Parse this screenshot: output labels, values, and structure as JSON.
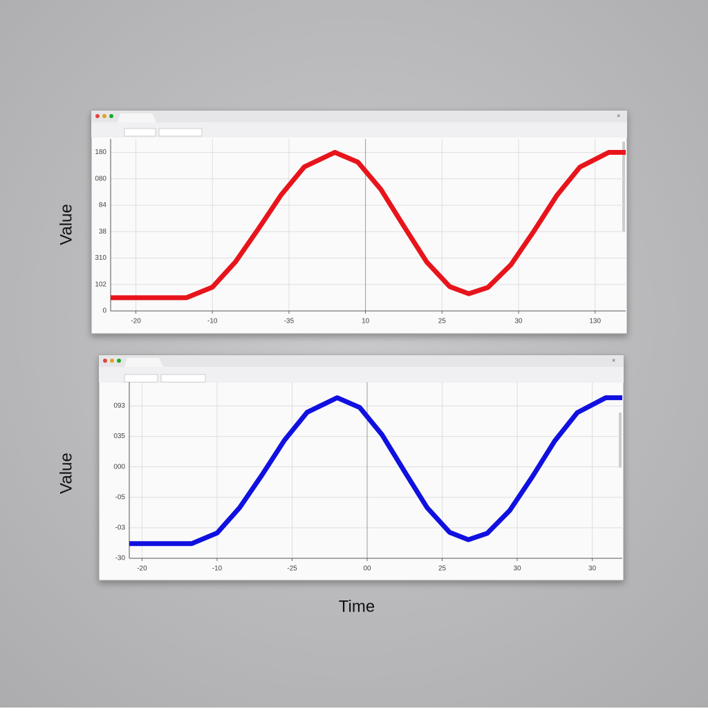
{
  "chart_data": [
    {
      "type": "line",
      "ylabel": "Value",
      "x": [
        -0.33,
        0.66,
        1.0,
        1.3,
        1.6,
        1.9,
        2.2,
        2.6,
        2.9,
        3.2,
        3.5,
        3.8,
        4.1,
        4.35,
        4.6,
        4.9,
        5.2,
        5.5,
        5.8,
        6.18,
        6.4
      ],
      "series": [
        {
          "color": "#e8141b",
          "values": [
            0.5,
            0.5,
            0.9,
            1.85,
            3.1,
            4.4,
            5.45,
            6.0,
            5.63,
            4.6,
            3.21,
            1.85,
            0.92,
            0.65,
            0.89,
            1.75,
            3.02,
            4.37,
            5.44,
            6.0,
            6.0
          ]
        }
      ],
      "xlim": [
        -0.33,
        6.4
      ],
      "ylim": [
        0,
        6.3
      ],
      "xticks": [
        {
          "value": 0,
          "label": "-20"
        },
        {
          "value": 1,
          "label": "-10"
        },
        {
          "value": 2,
          "label": "-35"
        },
        {
          "value": 3,
          "label": "10"
        },
        {
          "value": 4,
          "label": "25"
        },
        {
          "value": 5,
          "label": "30"
        },
        {
          "value": 6,
          "label": "130"
        }
      ],
      "yticks": [
        {
          "value": 0,
          "label": "0"
        },
        {
          "value": 1,
          "label": "102"
        },
        {
          "value": 2,
          "label": "310"
        },
        {
          "value": 3,
          "label": "38"
        },
        {
          "value": 4,
          "label": "84"
        },
        {
          "value": 5,
          "label": "080"
        },
        {
          "value": 6,
          "label": "180"
        }
      ],
      "grid": true
    },
    {
      "type": "line",
      "ylabel": "Value",
      "xlabel": "Time",
      "x": [
        -0.17,
        0.66,
        1.0,
        1.3,
        1.6,
        1.9,
        2.2,
        2.6,
        2.9,
        3.2,
        3.5,
        3.8,
        4.1,
        4.35,
        4.6,
        4.9,
        5.2,
        5.5,
        5.8,
        6.18,
        6.4
      ],
      "series": [
        {
          "color": "#1010e0",
          "values": [
            0.48,
            0.48,
            0.83,
            1.66,
            2.74,
            3.88,
            4.79,
            5.27,
            4.95,
            4.05,
            2.84,
            1.66,
            0.85,
            0.61,
            0.82,
            1.57,
            2.67,
            3.85,
            4.78,
            5.27,
            5.27
          ]
        }
      ],
      "xlim": [
        -0.17,
        6.4
      ],
      "ylim": [
        0,
        5.6
      ],
      "xticks": [
        {
          "value": 0,
          "label": "-20"
        },
        {
          "value": 1,
          "label": "-10"
        },
        {
          "value": 2,
          "label": "-25"
        },
        {
          "value": 3,
          "label": "00"
        },
        {
          "value": 4,
          "label": "25"
        },
        {
          "value": 5,
          "label": "30"
        },
        {
          "value": 6,
          "label": "30"
        }
      ],
      "yticks": [
        {
          "value": 0,
          "label": "-30"
        },
        {
          "value": 1,
          "label": "-03"
        },
        {
          "value": 2,
          "label": "-05"
        },
        {
          "value": 3,
          "label": "000"
        },
        {
          "value": 4,
          "label": "035"
        },
        {
          "value": 5,
          "label": "093"
        }
      ],
      "grid": true
    }
  ]
}
